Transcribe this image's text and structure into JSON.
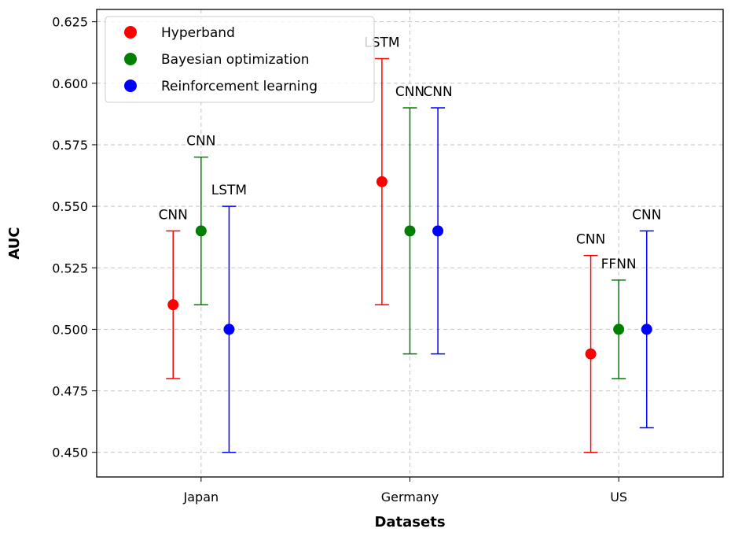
{
  "chart_data": {
    "type": "scatter",
    "title": "",
    "xlabel": "Datasets",
    "ylabel": "AUC",
    "categories": [
      "Japan",
      "Germany",
      "US"
    ],
    "ylim": [
      0.44,
      0.63
    ],
    "yticks": [
      "0.450",
      "0.475",
      "0.500",
      "0.525",
      "0.550",
      "0.575",
      "0.600",
      "0.625"
    ],
    "grid": true,
    "legend_position": "top-left",
    "series": [
      {
        "name": "Hyperband",
        "color": "#ff0000",
        "offset": -0.134,
        "points": [
          {
            "category": "Japan",
            "value": 0.51,
            "low": 0.48,
            "high": 0.54,
            "label": "CNN"
          },
          {
            "category": "Germany",
            "value": 0.56,
            "low": 0.51,
            "high": 0.61,
            "label": "LSTM"
          },
          {
            "category": "US",
            "value": 0.49,
            "low": 0.45,
            "high": 0.53,
            "label": "CNN"
          }
        ]
      },
      {
        "name": "Bayesian optimization",
        "color": "#008000",
        "offset": 0,
        "points": [
          {
            "category": "Japan",
            "value": 0.54,
            "low": 0.51,
            "high": 0.57,
            "label": "CNN"
          },
          {
            "category": "Germany",
            "value": 0.54,
            "low": 0.49,
            "high": 0.59,
            "label": "CNN"
          },
          {
            "category": "US",
            "value": 0.5,
            "low": 0.48,
            "high": 0.52,
            "label": "FFNN"
          }
        ]
      },
      {
        "name": "Reinforcement learning",
        "color": "#0000ff",
        "offset": 0.134,
        "points": [
          {
            "category": "Japan",
            "value": 0.5,
            "low": 0.45,
            "high": 0.55,
            "label": "LSTM"
          },
          {
            "category": "Germany",
            "value": 0.54,
            "low": 0.49,
            "high": 0.59,
            "label": "CNN"
          },
          {
            "category": "US",
            "value": 0.5,
            "low": 0.46,
            "high": 0.54,
            "label": "CNN"
          }
        ]
      }
    ]
  }
}
